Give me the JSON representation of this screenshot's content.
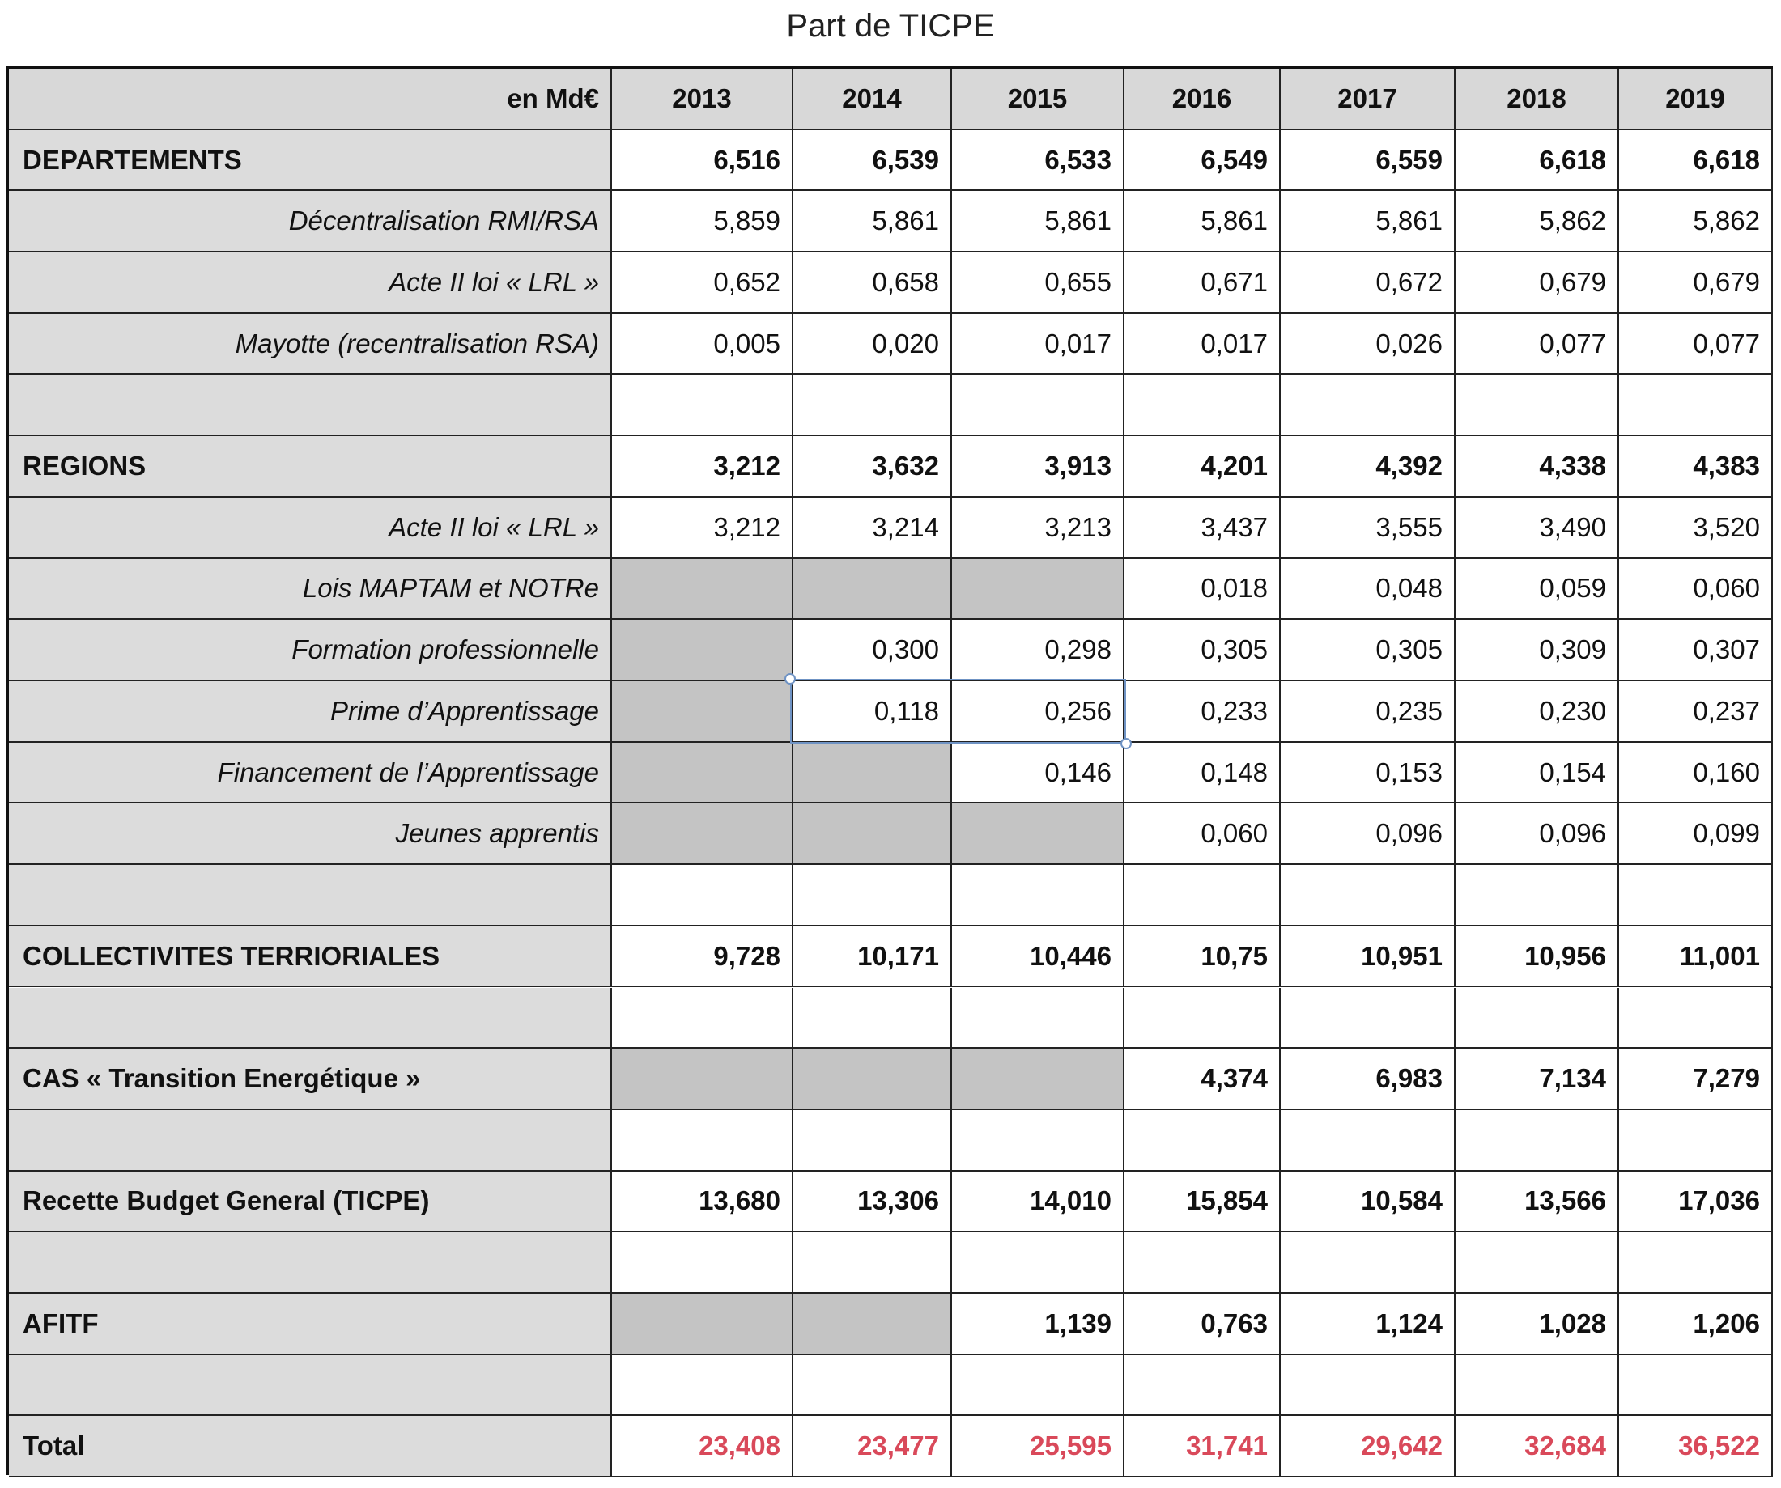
{
  "title": "Part de TICPE",
  "table": {
    "header": [
      "en Md€",
      "2013",
      "2014",
      "2015",
      "2016",
      "2017",
      "2018",
      "2019"
    ],
    "rows": [
      {
        "label": "DEPARTEMENTS",
        "cells": [
          "6,516",
          "6,539",
          "6,533",
          "6,549",
          "6,559",
          "6,618",
          "6,618"
        ]
      },
      {
        "label": "Décentralisation RMI/RSA",
        "cells": [
          "5,859",
          "5,861",
          "5,861",
          "5,861",
          "5,861",
          "5,862",
          "5,862"
        ]
      },
      {
        "label": "Acte II loi « LRL »",
        "cells": [
          "0,652",
          "0,658",
          "0,655",
          "0,671",
          "0,672",
          "0,679",
          "0,679"
        ]
      },
      {
        "label": "Mayotte (recentralisation RSA)",
        "cells": [
          "0,005",
          "0,020",
          "0,017",
          "0,017",
          "0,026",
          "0,077",
          "0,077"
        ]
      },
      {
        "label": null,
        "cells": [
          null,
          null,
          null,
          null,
          null,
          null,
          null
        ]
      },
      {
        "label": "REGIONS",
        "cells": [
          "3,212",
          "3,632",
          "3,913",
          "4,201",
          "4,392",
          "4,338",
          "4,383"
        ]
      },
      {
        "label": "Acte II loi « LRL »",
        "cells": [
          "3,212",
          "3,214",
          "3,213",
          "3,437",
          "3,555",
          "3,490",
          "3,520"
        ]
      },
      {
        "label": "Lois MAPTAM et NOTRe",
        "cells": [
          null,
          null,
          null,
          "0,018",
          "0,048",
          "0,059",
          "0,060"
        ]
      },
      {
        "label": "Formation professionnelle",
        "cells": [
          null,
          "0,300",
          "0,298",
          "0,305",
          "0,305",
          "0,309",
          "0,307"
        ]
      },
      {
        "label": "Prime d’Apprentissage",
        "cells": [
          null,
          "0,118",
          "0,256",
          "0,233",
          "0,235",
          "0,230",
          "0,237"
        ]
      },
      {
        "label": "Financement de l’Apprentissage",
        "cells": [
          null,
          null,
          "0,146",
          "0,148",
          "0,153",
          "0,154",
          "0,160"
        ]
      },
      {
        "label": "Jeunes apprentis",
        "cells": [
          null,
          null,
          null,
          "0,060",
          "0,096",
          "0,096",
          "0,099"
        ]
      },
      {
        "label": null,
        "cells": [
          null,
          null,
          null,
          null,
          null,
          null,
          null
        ]
      },
      {
        "label": "COLLECTIVITES TERRIORIALES",
        "cells": [
          "9,728",
          "10,171",
          "10,446",
          "10,75",
          "10,951",
          "10,956",
          "11,001"
        ]
      },
      {
        "label": null,
        "cells": [
          null,
          null,
          null,
          null,
          null,
          null,
          null
        ]
      },
      {
        "label": "CAS « Transition Energétique »",
        "cells": [
          null,
          null,
          null,
          "4,374",
          "6,983",
          "7,134",
          "7,279"
        ]
      },
      {
        "label": null,
        "cells": [
          null,
          null,
          null,
          null,
          null,
          null,
          null
        ]
      },
      {
        "label": "Recette Budget General (TICPE)",
        "cells": [
          "13,680",
          "13,306",
          "14,010",
          "15,854",
          "10,584",
          "13,566",
          "17,036"
        ]
      },
      {
        "label": null,
        "cells": [
          null,
          null,
          null,
          null,
          null,
          null,
          null
        ]
      },
      {
        "label": "AFITF",
        "cells": [
          null,
          null,
          "1,139",
          "0,763",
          "1,124",
          "1,028",
          "1,206"
        ]
      },
      {
        "label": null,
        "cells": [
          null,
          null,
          null,
          null,
          null,
          null,
          null
        ]
      },
      {
        "label": "Total",
        "cells": [
          "23,408",
          "23,477",
          "25,595",
          "31,741",
          "29,642",
          "32,684",
          "36,522"
        ]
      }
    ]
  }
}
